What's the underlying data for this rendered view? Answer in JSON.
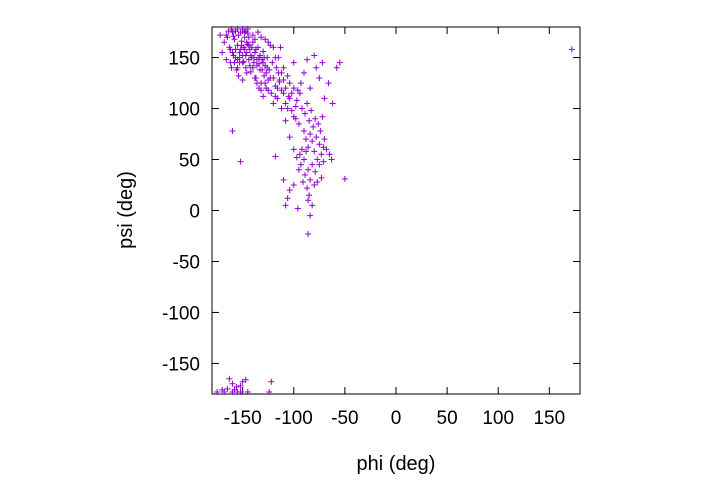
{
  "chart_data": {
    "type": "scatter",
    "title": "",
    "xlabel": "phi (deg)",
    "ylabel": "psi (deg)",
    "xlim": [
      -180,
      180
    ],
    "ylim": [
      -180,
      180
    ],
    "xticks": [
      "-150",
      "-100",
      "-50",
      "0",
      "50",
      "100",
      "150"
    ],
    "yticks": [
      "150",
      "100",
      "50",
      "0",
      "-50",
      "-100",
      "-150"
    ],
    "marker": "plus",
    "grid": false,
    "color": "#9400d3",
    "points": [
      [
        -172,
        172
      ],
      [
        -168,
        165
      ],
      [
        -165,
        170
      ],
      [
        -162,
        158
      ],
      [
        -160,
        175
      ],
      [
        -158,
        168
      ],
      [
        -157,
        150
      ],
      [
        -155,
        162
      ],
      [
        -154,
        172
      ],
      [
        -153,
        145
      ],
      [
        -152,
        158
      ],
      [
        -151,
        166
      ],
      [
        -150,
        152
      ],
      [
        -149,
        160
      ],
      [
        -148,
        170
      ],
      [
        -147,
        140
      ],
      [
        -146,
        155
      ],
      [
        -145,
        163
      ],
      [
        -144,
        148
      ],
      [
        -143,
        158
      ],
      [
        -142,
        136
      ],
      [
        -141,
        150
      ],
      [
        -140,
        165
      ],
      [
        -139,
        145
      ],
      [
        -138,
        155
      ],
      [
        -137,
        130
      ],
      [
        -136,
        142
      ],
      [
        -135,
        160
      ],
      [
        -134,
        150
      ],
      [
        -133,
        138
      ],
      [
        -132,
        125
      ],
      [
        -131,
        148
      ],
      [
        -130,
        156
      ],
      [
        -129,
        132
      ],
      [
        -128,
        142
      ],
      [
        -127,
        120
      ],
      [
        -126,
        150
      ],
      [
        -125,
        128
      ],
      [
        -124,
        138
      ],
      [
        -123,
        162
      ],
      [
        -122,
        115
      ],
      [
        -121,
        145
      ],
      [
        -120,
        130
      ],
      [
        -118,
        122
      ],
      [
        -117,
        140
      ],
      [
        -116,
        110
      ],
      [
        -115,
        150
      ],
      [
        -114,
        126
      ],
      [
        -113,
        160
      ],
      [
        -112,
        118
      ],
      [
        -170,
        155
      ],
      [
        -166,
        148
      ],
      [
        -163,
        160
      ],
      [
        -161,
        140
      ],
      [
        -159,
        152
      ],
      [
        -156,
        138
      ],
      [
        -154,
        132
      ],
      [
        -150,
        128
      ],
      [
        -148,
        175
      ],
      [
        -145,
        178
      ],
      [
        -140,
        172
      ],
      [
        -138,
        168
      ],
      [
        -135,
        175
      ],
      [
        -132,
        170
      ],
      [
        -128,
        168
      ],
      [
        -125,
        165
      ],
      [
        -120,
        160
      ],
      [
        -118,
        150
      ],
      [
        -115,
        135
      ],
      [
        -110,
        128
      ],
      [
        -158,
        145
      ],
      [
        -155,
        148
      ],
      [
        -153,
        155
      ],
      [
        -151,
        162
      ],
      [
        -149,
        146
      ],
      [
        -147,
        152
      ],
      [
        -146,
        165
      ],
      [
        -144,
        170
      ],
      [
        -143,
        142
      ],
      [
        -141,
        160
      ],
      [
        -139,
        150
      ],
      [
        -137,
        158
      ],
      [
        -136,
        148
      ],
      [
        -134,
        144
      ],
      [
        -133,
        152
      ],
      [
        -131,
        138
      ],
      [
        -130,
        145
      ],
      [
        -129,
        150
      ],
      [
        -127,
        135
      ],
      [
        -126,
        140
      ],
      [
        -108,
        105
      ],
      [
        -105,
        112
      ],
      [
        -102,
        98
      ],
      [
        -100,
        120
      ],
      [
        -98,
        90
      ],
      [
        -97,
        108
      ],
      [
        -95,
        85
      ],
      [
        -94,
        115
      ],
      [
        -92,
        100
      ],
      [
        -90,
        78
      ],
      [
        -89,
        95
      ],
      [
        -88,
        70
      ],
      [
        -87,
        105
      ],
      [
        -86,
        62
      ],
      [
        -85,
        88
      ],
      [
        -84,
        75
      ],
      [
        -83,
        98
      ],
      [
        -82,
        68
      ],
      [
        -81,
        82
      ],
      [
        -80,
        58
      ],
      [
        -79,
        90
      ],
      [
        -78,
        72
      ],
      [
        -77,
        50
      ],
      [
        -76,
        85
      ],
      [
        -75,
        65
      ],
      [
        -74,
        78
      ],
      [
        -73,
        55
      ],
      [
        -72,
        92
      ],
      [
        -71,
        62
      ],
      [
        -70,
        70
      ],
      [
        -110,
        140
      ],
      [
        -106,
        132
      ],
      [
        -104,
        125
      ],
      [
        -100,
        145
      ],
      [
        -96,
        118
      ],
      [
        -93,
        125
      ],
      [
        -90,
        135
      ],
      [
        -87,
        148
      ],
      [
        -84,
        120
      ],
      [
        -80,
        152
      ],
      [
        -78,
        140
      ],
      [
        -75,
        130
      ],
      [
        -72,
        145
      ],
      [
        -70,
        110
      ],
      [
        -66,
        125
      ],
      [
        -62,
        105
      ],
      [
        -58,
        140
      ],
      [
        -55,
        145
      ],
      [
        -68,
        60
      ],
      [
        -65,
        55
      ],
      [
        -112,
        100
      ],
      [
        -108,
        88
      ],
      [
        -104,
        72
      ],
      [
        -100,
        60
      ],
      [
        -97,
        52
      ],
      [
        -95,
        40
      ],
      [
        -93,
        45
      ],
      [
        -91,
        28
      ],
      [
        -89,
        35
      ],
      [
        -87,
        22
      ],
      [
        -86,
        40
      ],
      [
        -85,
        15
      ],
      [
        -84,
        30
      ],
      [
        -82,
        45
      ],
      [
        -80,
        25
      ],
      [
        -79,
        38
      ],
      [
        -77,
        28
      ],
      [
        -75,
        45
      ],
      [
        -73,
        32
      ],
      [
        -71,
        48
      ],
      [
        -110,
        30
      ],
      [
        -108,
        5
      ],
      [
        -106,
        12
      ],
      [
        -104,
        20
      ],
      [
        -100,
        25
      ],
      [
        -96,
        2
      ],
      [
        -94,
        55
      ],
      [
        -92,
        60
      ],
      [
        -90,
        50
      ],
      [
        -88,
        58
      ],
      [
        -86,
        10
      ],
      [
        -84,
        -5
      ],
      [
        -86,
        -23
      ],
      [
        -82,
        5
      ],
      [
        -50,
        31
      ],
      [
        -63,
        50
      ],
      [
        -118,
        53
      ],
      [
        -160,
        78
      ],
      [
        -152,
        48
      ],
      [
        -162,
        145
      ],
      [
        -166,
        172
      ],
      [
        -164,
        176
      ],
      [
        -161,
        178
      ],
      [
        -159,
        171
      ],
      [
        -157,
        176
      ],
      [
        -155,
        178
      ],
      [
        -152,
        175
      ],
      [
        -150,
        178
      ],
      [
        -147,
        176
      ],
      [
        -145,
        174
      ],
      [
        -160,
        155
      ],
      [
        -157,
        158
      ],
      [
        -155,
        140
      ],
      [
        -153,
        150
      ],
      [
        -150,
        145
      ],
      [
        -148,
        158
      ],
      [
        -146,
        135
      ],
      [
        -144,
        162
      ],
      [
        -142,
        152
      ],
      [
        -140,
        140
      ],
      [
        -138,
        130
      ],
      [
        -136,
        125
      ],
      [
        -134,
        120
      ],
      [
        -132,
        118
      ],
      [
        -130,
        112
      ],
      [
        -128,
        125
      ],
      [
        -125,
        118
      ],
      [
        -123,
        130
      ],
      [
        -120,
        105
      ],
      [
        -118,
        112
      ],
      [
        -116,
        120
      ],
      [
        -114,
        128
      ],
      [
        -112,
        135
      ],
      [
        -110,
        115
      ],
      [
        -108,
        120
      ],
      [
        -106,
        100
      ],
      [
        -104,
        110
      ],
      [
        -102,
        115
      ],
      [
        -100,
        92
      ],
      [
        -98,
        102
      ],
      [
        -175,
        -178
      ],
      [
        -168,
        -178
      ],
      [
        -165,
        -175
      ],
      [
        -163,
        -165
      ],
      [
        -160,
        -178
      ],
      [
        -158,
        -176
      ],
      [
        -155,
        -178
      ],
      [
        -152,
        -172
      ],
      [
        -150,
        -168
      ],
      [
        -147,
        -166
      ],
      [
        -145,
        -178
      ],
      [
        -122,
        -168
      ],
      [
        -124,
        -178
      ],
      [
        -160,
        -170
      ],
      [
        -156,
        -173
      ],
      [
        172,
        158
      ],
      [
        -152,
        -178
      ],
      [
        -170,
        -176
      ]
    ]
  }
}
